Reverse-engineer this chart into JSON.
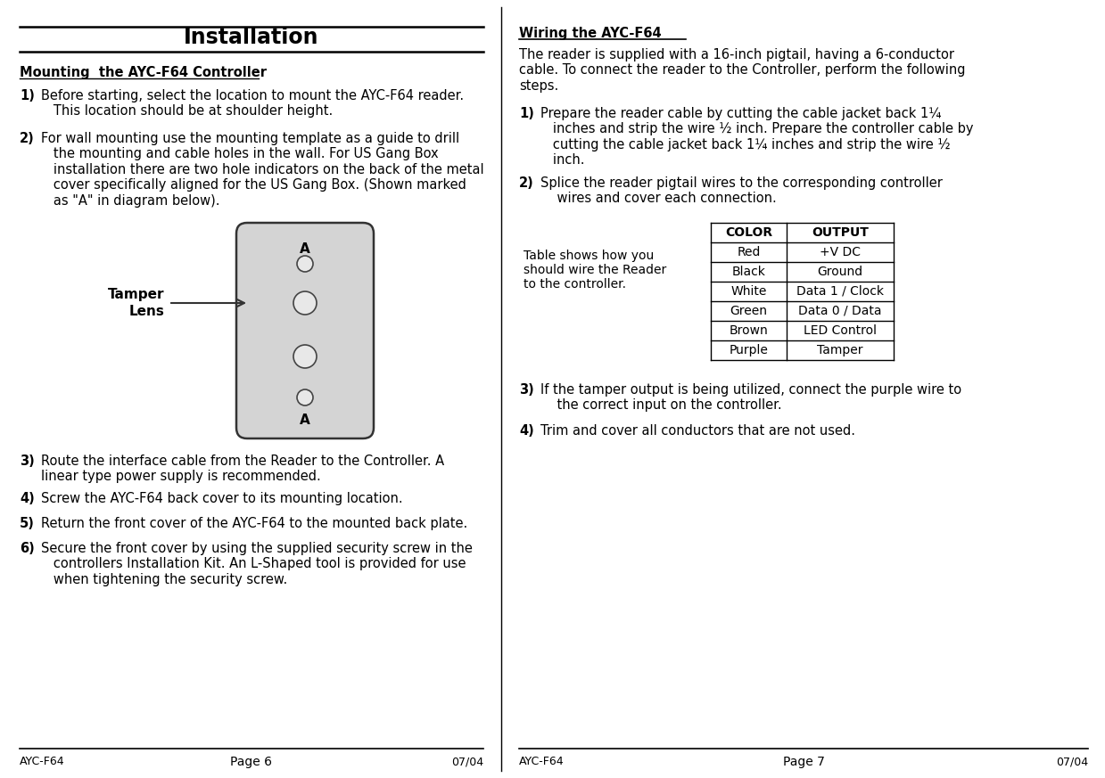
{
  "bg_color": "#ffffff",
  "left_page": {
    "title": "Installation",
    "section_heading": "Mounting  the AYC-F64 Controller",
    "footer_left": "AYC-F64",
    "footer_center": "Page 6",
    "footer_right": "07/04"
  },
  "right_page": {
    "section_heading": "Wiring the AYC-F64",
    "intro": "The reader is supplied with a 16-inch pigtail, having a 6-conductor\ncable. To connect the reader to the Controller, perform the following\nsteps.",
    "table_note": "Table shows how you\nshould wire the Reader\nto the controller.",
    "table_headers": [
      "COLOR",
      "OUTPUT"
    ],
    "table_rows": [
      [
        "Red",
        "+V DC"
      ],
      [
        "Black",
        "Ground"
      ],
      [
        "White",
        "Data 1 / Clock"
      ],
      [
        "Green",
        "Data 0 / Data"
      ],
      [
        "Brown",
        "LED Control"
      ],
      [
        "Purple",
        "Tamper"
      ]
    ],
    "footer_left": "AYC-F64",
    "footer_center": "Page 7",
    "footer_right": "07/04"
  }
}
